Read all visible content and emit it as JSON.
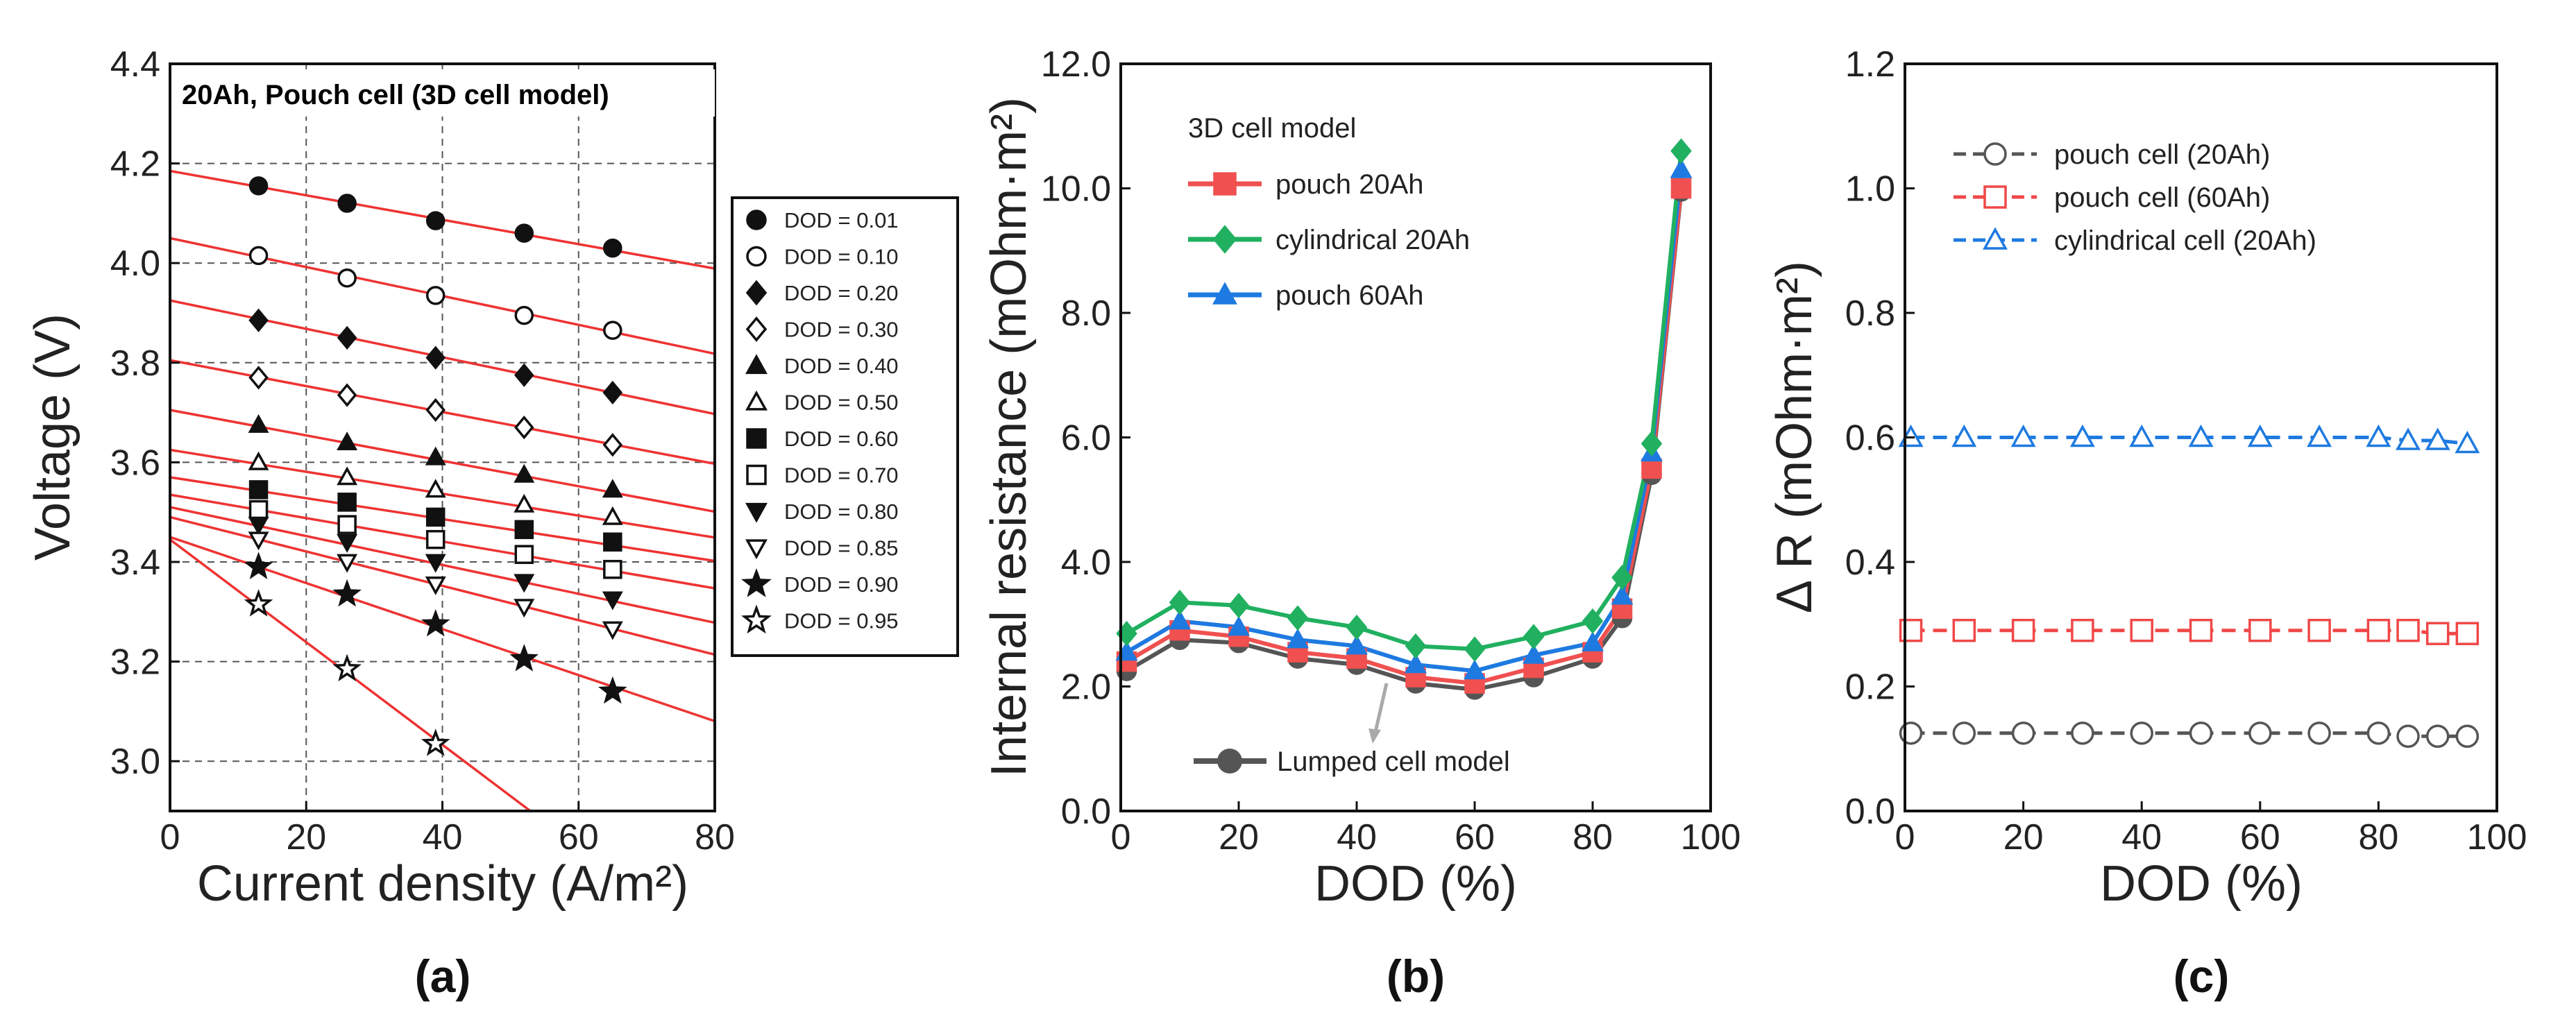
{
  "chart_data": [
    {
      "type": "scatter",
      "panel_label": "(a)",
      "title": "20Ah, Pouch cell (3D cell model)",
      "xlabel": "Current density (A/m²)",
      "ylabel": "Voltage (V)",
      "xlim": [
        0,
        80
      ],
      "ylim": [
        2.9,
        4.4
      ],
      "xticks": [
        "0",
        "20",
        "40",
        "60",
        "80"
      ],
      "yticks": [
        "3.0",
        "3.2",
        "3.4",
        "3.6",
        "3.8",
        "4.0",
        "4.2",
        "4.4"
      ],
      "grid": true,
      "legend_position": "right-outside",
      "x": [
        13,
        26,
        39,
        52,
        65
      ],
      "series": [
        {
          "name": "DOD = 0.01",
          "marker": "circle-filled",
          "values": [
            4.155,
            4.12,
            4.085,
            4.06,
            4.03
          ],
          "fit": [
            4.185,
            -0.00245
          ]
        },
        {
          "name": "DOD = 0.10",
          "marker": "circle-open",
          "values": [
            4.015,
            3.97,
            3.935,
            3.895,
            3.865
          ],
          "fit": [
            4.05,
            -0.0029
          ]
        },
        {
          "name": "DOD = 0.20",
          "marker": "diamond-filled",
          "values": [
            3.885,
            3.85,
            3.81,
            3.775,
            3.74
          ],
          "fit": [
            3.925,
            -0.00285
          ]
        },
        {
          "name": "DOD = 0.30",
          "marker": "diamond-open",
          "values": [
            3.77,
            3.735,
            3.705,
            3.67,
            3.635
          ],
          "fit": [
            3.805,
            -0.0026
          ]
        },
        {
          "name": "DOD = 0.40",
          "marker": "triangle-filled",
          "values": [
            3.675,
            3.64,
            3.61,
            3.575,
            3.545
          ],
          "fit": [
            3.705,
            -0.00255
          ]
        },
        {
          "name": "DOD = 0.50",
          "marker": "triangle-open",
          "values": [
            3.6,
            3.57,
            3.545,
            3.515,
            3.49
          ],
          "fit": [
            3.625,
            -0.0022
          ]
        },
        {
          "name": "DOD = 0.60",
          "marker": "square-filled",
          "values": [
            3.545,
            3.52,
            3.49,
            3.465,
            3.44
          ],
          "fit": [
            3.57,
            -0.0021
          ]
        },
        {
          "name": "DOD = 0.70",
          "marker": "square-open",
          "values": [
            3.505,
            3.475,
            3.445,
            3.415,
            3.385
          ],
          "fit": [
            3.535,
            -0.00235
          ]
        },
        {
          "name": "DOD = 0.80",
          "marker": "triangle-down-filled",
          "values": [
            3.475,
            3.44,
            3.4,
            3.36,
            3.325
          ],
          "fit": [
            3.51,
            -0.0029
          ]
        },
        {
          "name": "DOD = 0.85",
          "marker": "triangle-down-open",
          "values": [
            3.445,
            3.4,
            3.355,
            3.31,
            3.265
          ],
          "fit": [
            3.49,
            -0.00345
          ]
        },
        {
          "name": "DOD = 0.90",
          "marker": "star-filled",
          "values": [
            3.39,
            3.335,
            3.275,
            3.205,
            3.14
          ],
          "fit": [
            3.45,
            -0.00462
          ]
        },
        {
          "name": "DOD = 0.95",
          "marker": "star-open",
          "values": [
            3.315,
            3.185,
            3.035,
            null,
            null
          ],
          "fit": [
            3.445,
            -0.0103
          ]
        }
      ]
    },
    {
      "type": "line",
      "panel_label": "(b)",
      "xlabel": "DOD (%)",
      "ylabel": "Internal resistance (mOhm·m²)",
      "xlim": [
        0,
        100
      ],
      "ylim": [
        0,
        12
      ],
      "xticks": [
        "0",
        "20",
        "40",
        "60",
        "80",
        "100"
      ],
      "yticks": [
        "0.0",
        "2.0",
        "4.0",
        "6.0",
        "8.0",
        "10.0",
        "12.0"
      ],
      "legend_title": "3D cell model",
      "annotation": "Lumped cell model",
      "legend_position": "top-left",
      "x": [
        1,
        10,
        20,
        30,
        40,
        50,
        60,
        70,
        80,
        85,
        90,
        95
      ],
      "series": [
        {
          "name": "pouch 20Ah",
          "color": "#f05050",
          "marker": "square",
          "values": [
            2.4,
            2.9,
            2.8,
            2.55,
            2.45,
            2.15,
            2.05,
            2.3,
            2.55,
            3.25,
            5.5,
            10.0
          ]
        },
        {
          "name": "cylindrical 20Ah",
          "color": "#20b060",
          "marker": "diamond",
          "values": [
            2.85,
            3.35,
            3.3,
            3.1,
            2.95,
            2.65,
            2.6,
            2.8,
            3.05,
            3.75,
            5.9,
            10.6
          ]
        },
        {
          "name": "pouch 60Ah",
          "color": "#1e7ae0",
          "marker": "triangle",
          "values": [
            2.55,
            3.05,
            2.95,
            2.75,
            2.65,
            2.35,
            2.25,
            2.5,
            2.7,
            3.45,
            5.75,
            10.3
          ]
        },
        {
          "name": "Lumped cell model",
          "color": "#555555",
          "marker": "circle",
          "values": [
            2.25,
            2.75,
            2.7,
            2.45,
            2.35,
            2.05,
            1.95,
            2.15,
            2.45,
            3.1,
            5.4,
            9.95
          ]
        }
      ]
    },
    {
      "type": "line",
      "panel_label": "(c)",
      "xlabel": "DOD (%)",
      "ylabel": "Δ R (mOhm·m²)",
      "xlim": [
        0,
        100
      ],
      "ylim": [
        0,
        1.2
      ],
      "xticks": [
        "0",
        "20",
        "40",
        "60",
        "80",
        "100"
      ],
      "yticks": [
        "0.0",
        "0.2",
        "0.4",
        "0.6",
        "0.8",
        "1.0",
        "1.2"
      ],
      "legend_position": "top-right",
      "x": [
        1,
        10,
        20,
        30,
        40,
        50,
        60,
        70,
        80,
        85,
        90,
        95
      ],
      "series": [
        {
          "name": "pouch cell (20Ah)",
          "color": "#555555",
          "marker": "circle-open",
          "values": [
            0.125,
            0.125,
            0.125,
            0.125,
            0.125,
            0.125,
            0.125,
            0.125,
            0.125,
            0.12,
            0.12,
            0.12
          ]
        },
        {
          "name": "pouch cell (60Ah)",
          "color": "#f04848",
          "marker": "square-open",
          "values": [
            0.29,
            0.29,
            0.29,
            0.29,
            0.29,
            0.29,
            0.29,
            0.29,
            0.29,
            0.29,
            0.285,
            0.285
          ]
        },
        {
          "name": "cylindrical cell (20Ah)",
          "color": "#1e7ae0",
          "marker": "triangle-open",
          "values": [
            0.6,
            0.6,
            0.6,
            0.6,
            0.6,
            0.6,
            0.6,
            0.6,
            0.6,
            0.595,
            0.595,
            0.59
          ]
        }
      ]
    }
  ]
}
